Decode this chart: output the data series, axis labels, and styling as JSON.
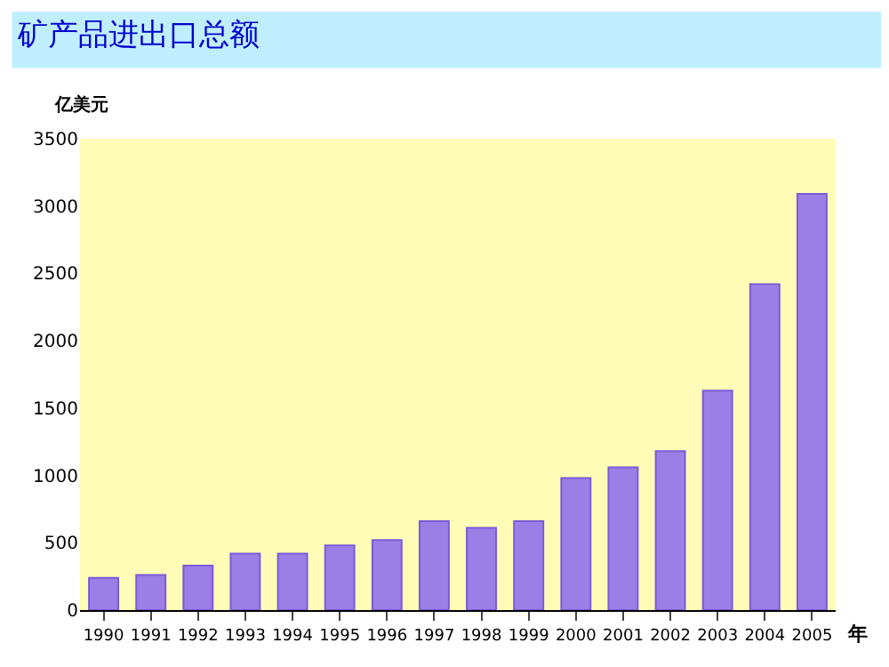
{
  "chart_data": {
    "type": "bar",
    "title": "矿产品进出口总额",
    "ylabel": "亿美元",
    "xlabel": "年",
    "categories": [
      "1990",
      "1991",
      "1992",
      "1993",
      "1994",
      "1995",
      "1996",
      "1997",
      "1998",
      "1999",
      "2000",
      "2001",
      "2002",
      "2003",
      "2004",
      "2005"
    ],
    "values": [
      240,
      260,
      330,
      420,
      420,
      480,
      520,
      660,
      610,
      660,
      980,
      1060,
      1180,
      1630,
      2420,
      3090
    ],
    "color": "#9b7fe6",
    "ylim": [
      0,
      3500
    ],
    "yticks": [
      0,
      500,
      1000,
      1500,
      2000,
      2500,
      3000,
      3500
    ],
    "grid": false
  }
}
